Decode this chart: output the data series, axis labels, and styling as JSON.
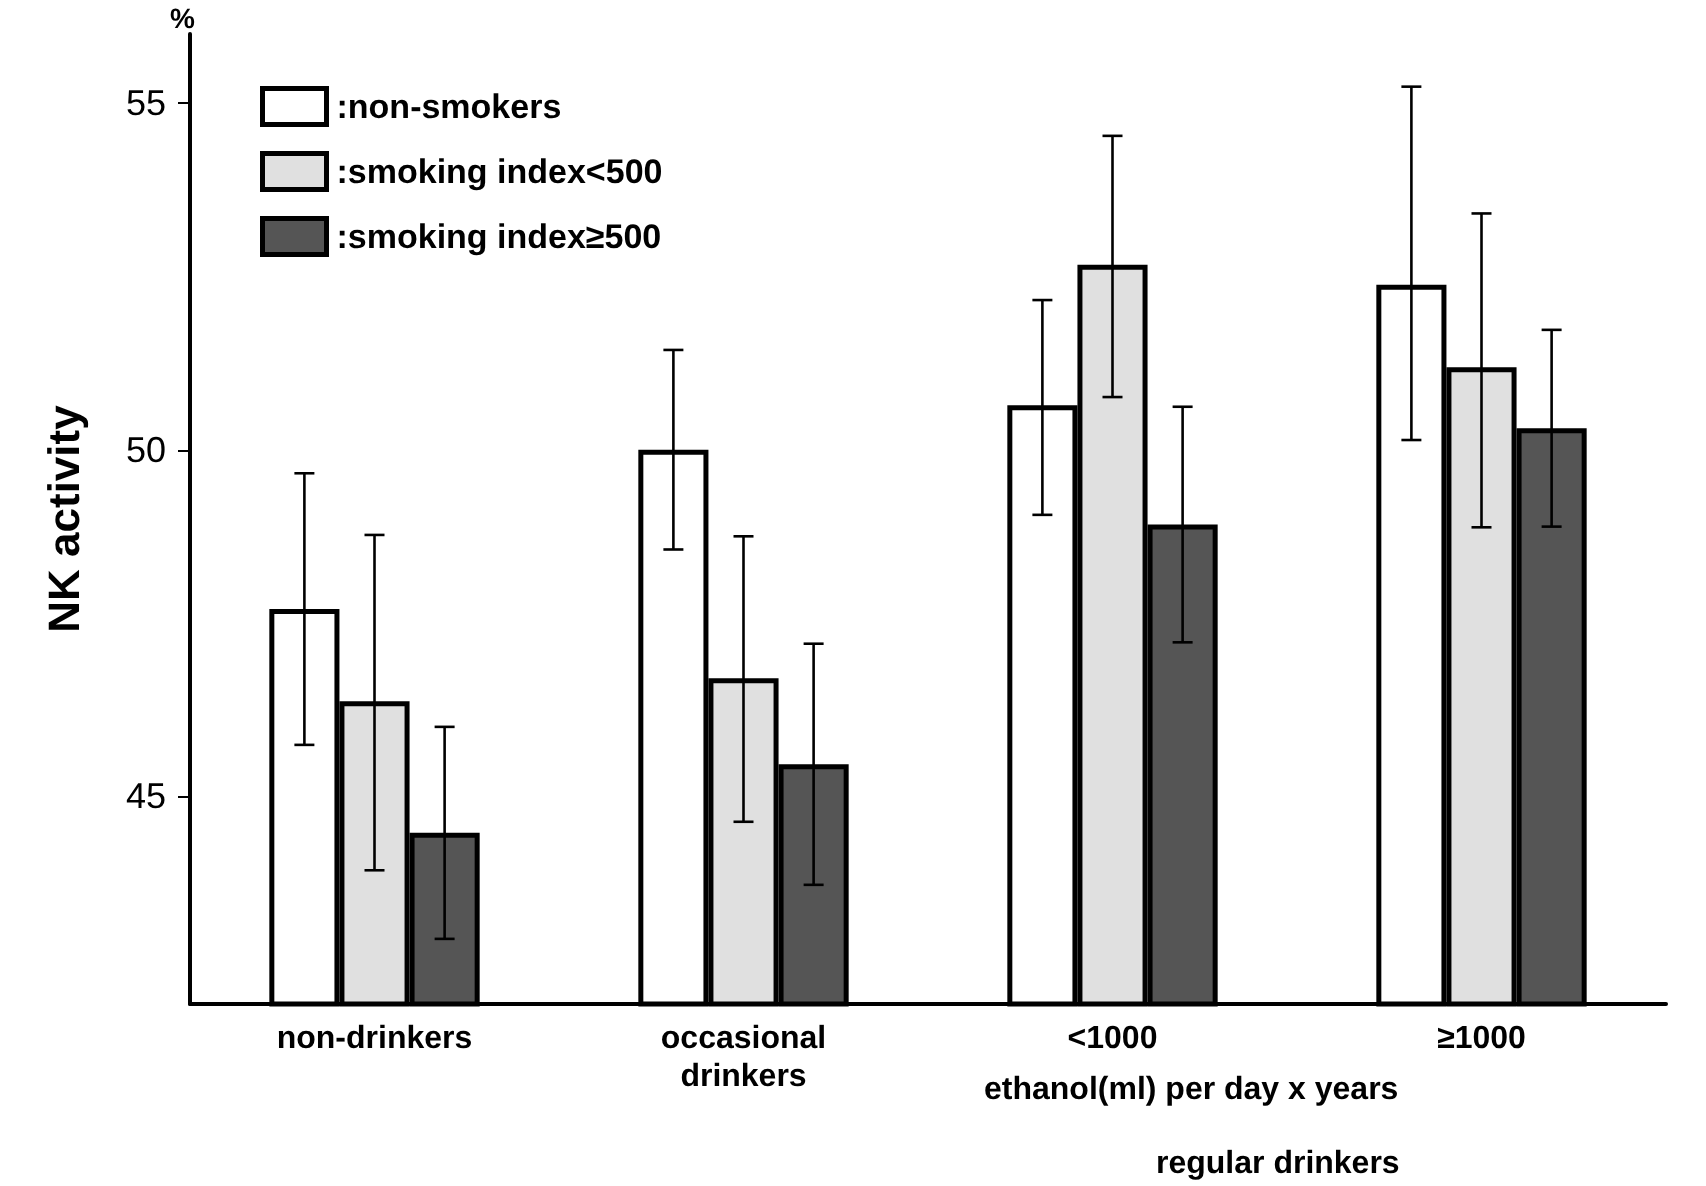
{
  "chart_data": {
    "type": "bar",
    "ylabel": "NK activity",
    "categories": [
      "non-drinkers",
      "occasional\ndrinkers",
      "<1000",
      "≥1000"
    ],
    "series": [
      {
        "name": ":non-smokers",
        "color": "#ffffff",
        "values": [
          47.7,
          50.0,
          50.64,
          52.38
        ],
        "errors": [
          [
            45.74,
            49.66
          ],
          [
            48.56,
            51.44
          ],
          [
            49.06,
            52.16
          ],
          [
            50.14,
            55.24
          ]
        ]
      },
      {
        "name": ":smoking index<500",
        "color": "#e0e0e0",
        "values": [
          46.37,
          46.7,
          52.67,
          51.19
        ],
        "errors": [
          [
            43.93,
            48.77
          ],
          [
            44.63,
            48.75
          ],
          [
            50.76,
            54.53
          ],
          [
            48.88,
            53.41
          ]
        ]
      },
      {
        "name": ":smoking index≥500",
        "color": "#555555",
        "values": [
          44.47,
          45.46,
          48.92,
          50.31
        ],
        "errors": [
          [
            42.94,
            46.0
          ],
          [
            43.72,
            47.2
          ],
          [
            47.22,
            50.62
          ],
          [
            48.89,
            51.73
          ]
        ]
      }
    ],
    "ylim": [
      42,
      56
    ],
    "yticks": [
      45,
      50,
      55
    ],
    "grid": false,
    "legend": "top left",
    "annotations": [
      "%",
      "ethanol(ml) per day x years",
      "regular drinkers"
    ]
  }
}
